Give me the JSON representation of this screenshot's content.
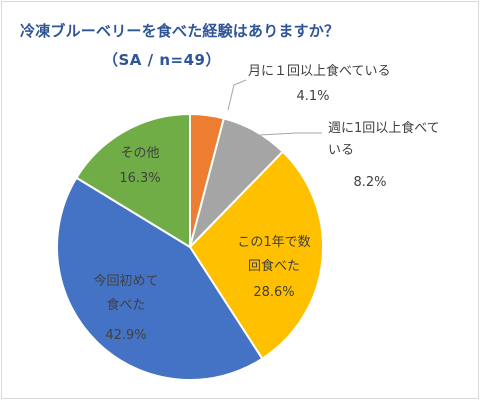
{
  "chart_data": {
    "type": "pie",
    "title": "冷凍ブルーベリーを食べた経験はありますか？",
    "subtitle": "（SA / n=49）",
    "start_angle_deg": 0,
    "direction": "clockwise",
    "slices": [
      {
        "label_lines": [
          "月に１回以上食べている"
        ],
        "value": 4.1,
        "value_text": "4.1%",
        "color": "#ed7d31"
      },
      {
        "label_lines": [
          "週に1回以上食べて",
          "いる"
        ],
        "value": 8.2,
        "value_text": "8.2%",
        "color": "#a5a5a5"
      },
      {
        "label_lines": [
          "この1年で数",
          "回食べた"
        ],
        "value": 28.6,
        "value_text": "28.6%",
        "color": "#ffc000"
      },
      {
        "label_lines": [
          "今回初めて",
          "食べた"
        ],
        "value": 42.9,
        "value_text": "42.9%",
        "color": "#4472c4"
      },
      {
        "label_lines": [
          "その他"
        ],
        "value": 16.3,
        "value_text": "16.3%",
        "color": "#70ad47"
      }
    ],
    "leader_line_color": "#a6a6a6",
    "label_color": "#404040"
  }
}
